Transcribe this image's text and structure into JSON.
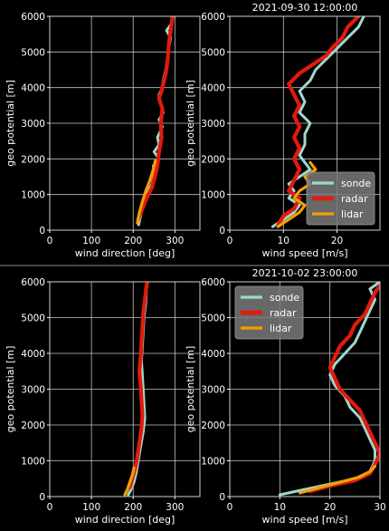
{
  "colors": {
    "sonde": "#9fd8cf",
    "radar": "#e31a0c",
    "lidar": "#f0a000",
    "background": "#000000",
    "legend_bg": "#7a7a7a"
  },
  "chart_data": [
    {
      "type": "line",
      "panel": "top-left",
      "title": "",
      "xlabel": "wind direction [deg]",
      "ylabel": "geo potential [m]",
      "xlim": [
        0,
        360
      ],
      "ylim": [
        0,
        6000
      ],
      "xticks": [
        "0",
        "100",
        "200",
        "300"
      ],
      "yticks": [
        "0",
        "1000",
        "2000",
        "3000",
        "4000",
        "5000",
        "6000"
      ],
      "grid": true,
      "series": [
        {
          "name": "sonde",
          "points": [
            [
              213,
              150
            ],
            [
              218,
              400
            ],
            [
              223,
              700
            ],
            [
              232,
              1000
            ],
            [
              245,
              1300
            ],
            [
              252,
              1600
            ],
            [
              248,
              1800
            ],
            [
              262,
              2000
            ],
            [
              250,
              2200
            ],
            [
              262,
              2400
            ],
            [
              258,
              2600
            ],
            [
              270,
              2900
            ],
            [
              262,
              3100
            ],
            [
              272,
              3300
            ],
            [
              264,
              3600
            ],
            [
              262,
              3800
            ],
            [
              270,
              4000
            ],
            [
              272,
              4200
            ],
            [
              278,
              4500
            ],
            [
              282,
              4800
            ],
            [
              285,
              5100
            ],
            [
              290,
              5400
            ],
            [
              280,
              5600
            ],
            [
              292,
              5800
            ],
            [
              296,
              6000
            ]
          ]
        },
        {
          "name": "radar",
          "points": [
            [
              212,
              300
            ],
            [
              222,
              600
            ],
            [
              232,
              900
            ],
            [
              245,
              1200
            ],
            [
              252,
              1500
            ],
            [
              258,
              1800
            ],
            [
              262,
              2200
            ],
            [
              268,
              2600
            ],
            [
              266,
              3000
            ],
            [
              270,
              3400
            ],
            [
              262,
              3700
            ],
            [
              268,
              3900
            ],
            [
              272,
              4100
            ],
            [
              278,
              4400
            ],
            [
              282,
              4700
            ],
            [
              284,
              5000
            ],
            [
              286,
              5300
            ],
            [
              290,
              5600
            ],
            [
              292,
              5800
            ],
            [
              294,
              6000
            ]
          ]
        },
        {
          "name": "lidar",
          "points": [
            [
              210,
              200
            ],
            [
              215,
              500
            ],
            [
              222,
              800
            ],
            [
              230,
              1100
            ],
            [
              240,
              1400
            ],
            [
              248,
              1700
            ],
            [
              253,
              1950
            ]
          ]
        }
      ]
    },
    {
      "type": "line",
      "panel": "top-right",
      "title": "2021-09-30 12:00:00",
      "xlabel": "wind speed [m/s]",
      "ylabel": "geo potential [m]",
      "xlim": [
        0,
        28
      ],
      "ylim": [
        0,
        6000
      ],
      "xticks": [
        "0",
        "10",
        "20"
      ],
      "yticks": [
        "0",
        "1000",
        "2000",
        "3000",
        "4000",
        "5000",
        "6000"
      ],
      "grid": true,
      "legend": "lower-right",
      "series": [
        {
          "name": "sonde",
          "points": [
            [
              8,
              100
            ],
            [
              10,
              300
            ],
            [
              12,
              500
            ],
            [
              13,
              700
            ],
            [
              11,
              900
            ],
            [
              12,
              1100
            ],
            [
              11,
              1300
            ],
            [
              13,
              1500
            ],
            [
              15,
              1700
            ],
            [
              14,
              1900
            ],
            [
              13,
              2100
            ],
            [
              14,
              2400
            ],
            [
              14,
              2700
            ],
            [
              15,
              3000
            ],
            [
              13,
              3300
            ],
            [
              14,
              3600
            ],
            [
              13,
              3900
            ],
            [
              15,
              4200
            ],
            [
              16,
              4500
            ],
            [
              18,
              4800
            ],
            [
              20,
              5100
            ],
            [
              22,
              5400
            ],
            [
              24,
              5700
            ],
            [
              25,
              6000
            ]
          ]
        },
        {
          "name": "radar",
          "points": [
            [
              9,
              150
            ],
            [
              10,
              400
            ],
            [
              12,
              600
            ],
            [
              13,
              900
            ],
            [
              11,
              1100
            ],
            [
              12,
              1400
            ],
            [
              13,
              1700
            ],
            [
              12,
              2000
            ],
            [
              13,
              2300
            ],
            [
              12,
              2600
            ],
            [
              13,
              2900
            ],
            [
              12,
              3200
            ],
            [
              13,
              3500
            ],
            [
              12,
              3800
            ],
            [
              11,
              4100
            ],
            [
              13,
              4400
            ],
            [
              16,
              4700
            ],
            [
              18,
              4900
            ],
            [
              19,
              5100
            ],
            [
              21,
              5400
            ],
            [
              22,
              5700
            ],
            [
              24,
              6000
            ]
          ]
        },
        {
          "name": "lidar",
          "points": [
            [
              9,
              100
            ],
            [
              11,
              300
            ],
            [
              13,
              500
            ],
            [
              14,
              700
            ],
            [
              12,
              900
            ],
            [
              13,
              1100
            ],
            [
              15,
              1300
            ],
            [
              14,
              1500
            ],
            [
              16,
              1700
            ],
            [
              15,
              1900
            ]
          ]
        }
      ]
    },
    {
      "type": "line",
      "panel": "bottom-left",
      "title": "",
      "xlabel": "wind direction [deg]",
      "ylabel": "geo potential [m]",
      "xlim": [
        0,
        360
      ],
      "ylim": [
        0,
        6000
      ],
      "xticks": [
        "0",
        "100",
        "200",
        "300"
      ],
      "yticks": [
        "0",
        "1000",
        "2000",
        "3000",
        "4000",
        "5000",
        "6000"
      ],
      "grid": true,
      "series": [
        {
          "name": "sonde",
          "points": [
            [
              188,
              50
            ],
            [
              195,
              200
            ],
            [
              202,
              400
            ],
            [
              208,
              700
            ],
            [
              212,
              1000
            ],
            [
              218,
              1400
            ],
            [
              224,
              1800
            ],
            [
              228,
              2200
            ],
            [
              226,
              2600
            ],
            [
              224,
              3000
            ],
            [
              222,
              3400
            ],
            [
              220,
              3800
            ],
            [
              222,
              4200
            ],
            [
              224,
              4600
            ],
            [
              226,
              5000
            ],
            [
              230,
              5400
            ],
            [
              232,
              5800
            ],
            [
              234,
              6000
            ]
          ]
        },
        {
          "name": "radar",
          "points": [
            [
              192,
              250
            ],
            [
              198,
              500
            ],
            [
              205,
              800
            ],
            [
              210,
              1100
            ],
            [
              215,
              1500
            ],
            [
              220,
              1900
            ],
            [
              222,
              2300
            ],
            [
              220,
              2700
            ],
            [
              218,
              3100
            ],
            [
              215,
              3500
            ],
            [
              218,
              3900
            ],
            [
              220,
              4300
            ],
            [
              222,
              4700
            ],
            [
              224,
              5100
            ],
            [
              228,
              5500
            ],
            [
              232,
              5900
            ],
            [
              234,
              6000
            ]
          ]
        },
        {
          "name": "lidar",
          "points": [
            [
              180,
              50
            ],
            [
              186,
              200
            ],
            [
              192,
              400
            ],
            [
              198,
              600
            ],
            [
              202,
              800
            ]
          ]
        }
      ]
    },
    {
      "type": "line",
      "panel": "bottom-right",
      "title": "2021-10-02 23:00:00",
      "xlabel": "wind speed [m/s]",
      "ylabel": "geo potential [m]",
      "xlim": [
        0,
        30
      ],
      "ylim": [
        0,
        6000
      ],
      "xticks": [
        "0",
        "10",
        "20",
        "30"
      ],
      "yticks": [
        "0",
        "1000",
        "2000",
        "3000",
        "4000",
        "5000",
        "6000"
      ],
      "grid": true,
      "legend": "upper-left",
      "series": [
        {
          "name": "sonde",
          "points": [
            [
              10,
              50
            ],
            [
              15,
              200
            ],
            [
              20,
              350
            ],
            [
              25,
              500
            ],
            [
              28,
              700
            ],
            [
              29,
              1000
            ],
            [
              29,
              1300
            ],
            [
              28,
              1600
            ],
            [
              27,
              1900
            ],
            [
              26,
              2200
            ],
            [
              24,
              2500
            ],
            [
              23,
              2800
            ],
            [
              21,
              3100
            ],
            [
              20,
              3400
            ],
            [
              21,
              3700
            ],
            [
              23,
              4000
            ],
            [
              25,
              4300
            ],
            [
              26,
              4600
            ],
            [
              27,
              4900
            ],
            [
              28,
              5200
            ],
            [
              29,
              5500
            ],
            [
              28,
              5800
            ],
            [
              30,
              6000
            ]
          ]
        },
        {
          "name": "radar",
          "points": [
            [
              16,
              150
            ],
            [
              20,
              300
            ],
            [
              25,
              450
            ],
            [
              28,
              650
            ],
            [
              29,
              900
            ],
            [
              30,
              1200
            ],
            [
              29,
              1500
            ],
            [
              28,
              1800
            ],
            [
              27,
              2100
            ],
            [
              26,
              2400
            ],
            [
              24,
              2700
            ],
            [
              22,
              3000
            ],
            [
              21,
              3300
            ],
            [
              20,
              3600
            ],
            [
              21,
              3900
            ],
            [
              22,
              4200
            ],
            [
              24,
              4500
            ],
            [
              25,
              4800
            ],
            [
              27,
              5100
            ],
            [
              28,
              5400
            ],
            [
              29,
              5700
            ],
            [
              30,
              5900
            ]
          ]
        },
        {
          "name": "lidar",
          "points": [
            [
              14,
              100
            ],
            [
              18,
              250
            ],
            [
              22,
              400
            ],
            [
              26,
              550
            ],
            [
              28,
              700
            ],
            [
              29,
              850
            ]
          ]
        }
      ]
    }
  ]
}
